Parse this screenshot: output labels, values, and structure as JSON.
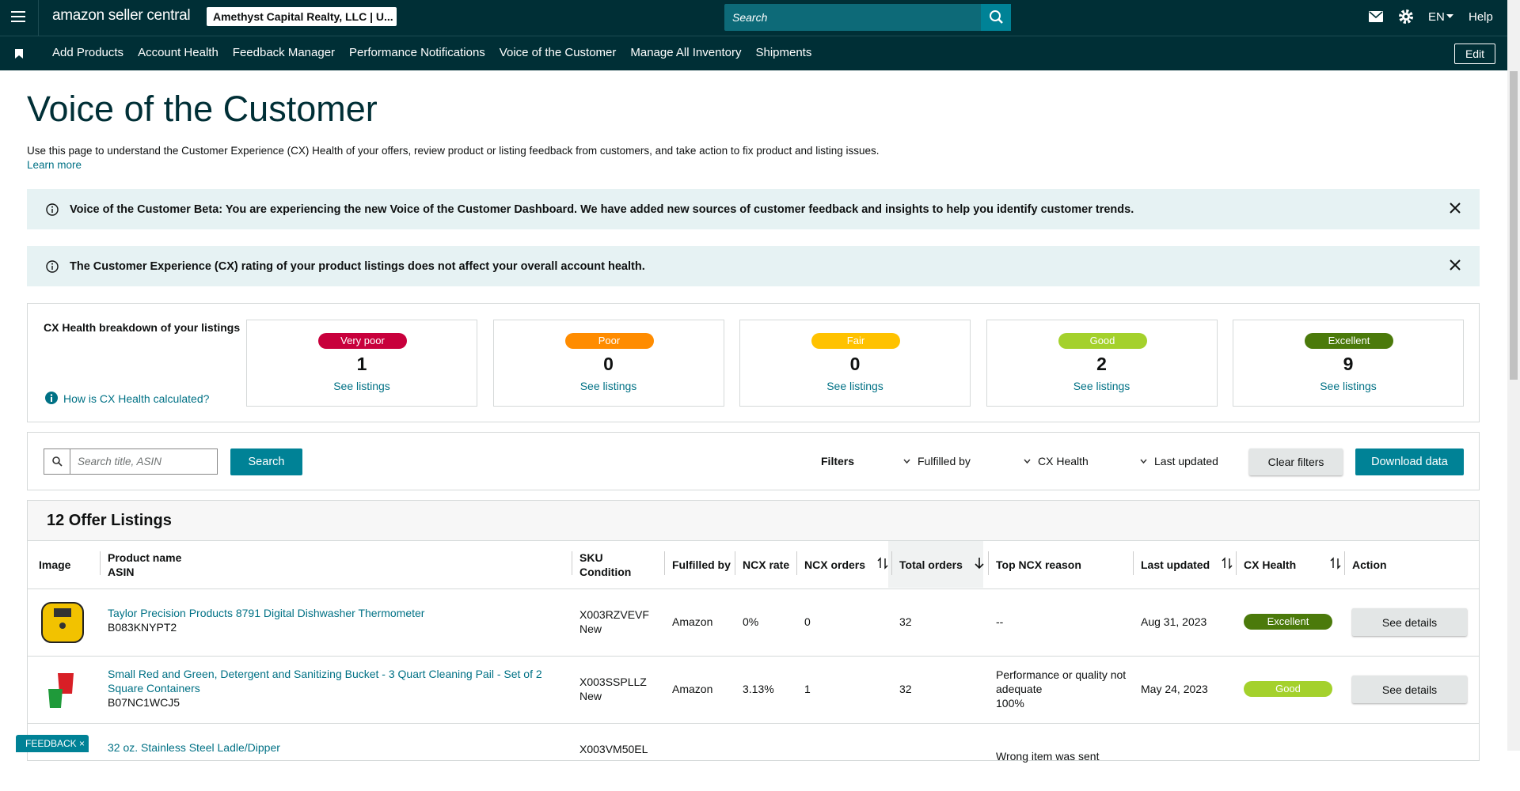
{
  "header": {
    "logo": "amazon seller central",
    "account": "Amethyst Capital Realty, LLC | U...",
    "search_placeholder": "Search",
    "language": "EN",
    "help": "Help"
  },
  "nav": {
    "items": [
      "Add Products",
      "Account Health",
      "Feedback Manager",
      "Performance Notifications",
      "Voice of the Customer",
      "Manage All Inventory",
      "Shipments"
    ],
    "edit": "Edit"
  },
  "page": {
    "title": "Voice of the Customer",
    "description": "Use this page to understand the Customer Experience (CX) Health of your offers, review product or listing feedback from customers, and take action to fix product and listing issues.",
    "learn_more": "Learn more"
  },
  "banners": [
    "Voice of the Customer Beta: You are experiencing the new Voice of the Customer Dashboard. We have added new sources of customer feedback and insights to help you identify customer trends.",
    "The Customer Experience (CX) rating of your product listings does not affect your overall account health."
  ],
  "cx_health": {
    "title": "CX Health breakdown of your listings",
    "help_link": "How is CX Health calculated?",
    "cards": [
      {
        "label": "Very poor",
        "count": 1,
        "link": "See listings",
        "color": "#c8003c"
      },
      {
        "label": "Poor",
        "count": 0,
        "link": "See listings",
        "color": "#ff8c00"
      },
      {
        "label": "Fair",
        "count": 0,
        "link": "See listings",
        "color": "#ffc200"
      },
      {
        "label": "Good",
        "count": 2,
        "link": "See listings",
        "color": "#a4d12c"
      },
      {
        "label": "Excellent",
        "count": 9,
        "link": "See listings",
        "color": "#4b7a0b"
      }
    ]
  },
  "filters": {
    "search_placeholder": "Search title, ASIN",
    "search_button": "Search",
    "label": "Filters",
    "dropdowns": [
      "Fulfilled by",
      "CX Health",
      "Last updated"
    ],
    "clear": "Clear filters",
    "download": "Download data"
  },
  "listings": {
    "title": "12 Offer Listings",
    "columns": [
      [
        "Image"
      ],
      [
        "Product name",
        "ASIN"
      ],
      [
        "SKU",
        "Condition"
      ],
      [
        "Fulfilled by"
      ],
      [
        "NCX rate"
      ],
      [
        "NCX orders"
      ],
      [
        "Total orders"
      ],
      [
        "Top NCX reason"
      ],
      [
        "Last updated"
      ],
      [
        "CX Health"
      ],
      [
        "Action"
      ]
    ],
    "rows": [
      {
        "name": "Taylor Precision Products 8791 Digital Dishwasher Thermometer",
        "asin": "B083KNYPT2",
        "sku": "X003RZVEVF",
        "condition": "New",
        "fulfilled_by": "Amazon",
        "ncx_rate": "0%",
        "ncx_orders": 0,
        "total_orders": 32,
        "top_reason": [
          "--"
        ],
        "last_updated": "Aug 31, 2023",
        "cx_health": "Excellent",
        "action": "See details"
      },
      {
        "name": "Small Red and Green, Detergent and Sanitizing Bucket - 3 Quart Cleaning Pail - Set of 2 Square Containers",
        "asin": "B07NC1WCJ5",
        "sku": "X003SSPLLZ",
        "condition": "New",
        "fulfilled_by": "Amazon",
        "ncx_rate": "3.13%",
        "ncx_orders": 1,
        "total_orders": 32,
        "top_reason": [
          "Performance or quality not adequate",
          "100%"
        ],
        "last_updated": "May 24, 2023",
        "cx_health": "Good",
        "action": "See details"
      },
      {
        "name": "32 oz. Stainless Steel Ladle/Dipper",
        "sku": "X003VM50EL",
        "top_reason": [
          "Wrong item was sent"
        ]
      }
    ]
  },
  "feedback": "FEEDBACK"
}
